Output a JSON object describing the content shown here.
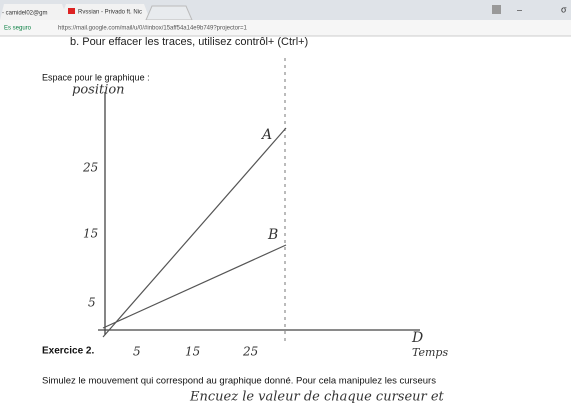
{
  "browser": {
    "tabs": [
      "- camidel02@gm",
      "Rvssian - Privado ft. Nic"
    ],
    "secure_label": "Es seguro",
    "url": "https://mail.google.com/mail/u/0/#inbox/15aff54a14e9b749?projector=1"
  },
  "document": {
    "instruction": "b.   Pour effacer les traces, utilisez contrôl+ (Ctrl+)",
    "graph_caption": "Espace pour le graphique :",
    "graph": {
      "y_label": "position",
      "x_label": "Temps",
      "line_labels": [
        "A",
        "B"
      ],
      "y_tick_labels": [
        "25",
        "15",
        "5"
      ],
      "x_tick_labels": [
        "5",
        "15",
        "25"
      ],
      "x_end_label": "D"
    },
    "exercise_title": "Exercice 2.",
    "exercise_text": "Simulez le mouvement qui correspond au graphique donné.  Pour cela manipulez les curseurs",
    "handwritten_note": "Encuez le valeur de chaque curseur et"
  }
}
